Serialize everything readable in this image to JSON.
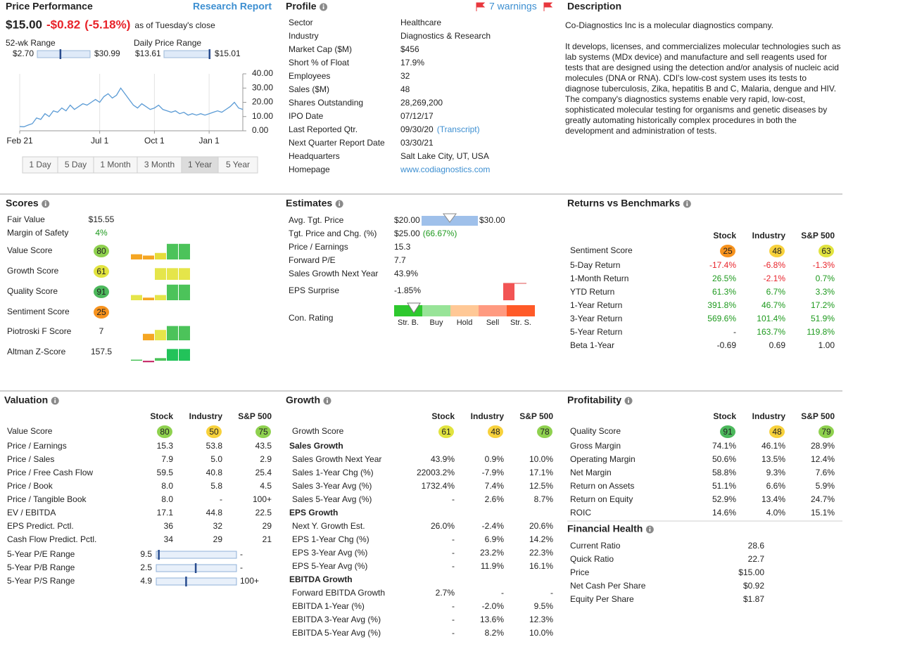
{
  "chart_data": {
    "type": "line",
    "color": "#5b9bd5",
    "values": [
      3,
      2.8,
      4,
      5,
      9,
      8,
      12,
      10,
      14,
      13,
      16,
      14,
      18,
      15,
      17,
      19,
      18,
      20,
      22,
      20,
      24,
      26,
      23,
      25,
      30,
      26,
      22,
      18,
      16,
      19,
      17,
      15,
      16,
      18,
      15,
      14,
      13,
      14,
      12,
      13,
      11,
      12,
      11,
      12,
      11,
      12,
      13,
      14,
      13,
      15,
      17,
      20,
      16,
      15
    ],
    "xlim": [
      0,
      53
    ],
    "xticks": [
      {
        "value": 0,
        "label": "Feb 21"
      },
      {
        "value": 19,
        "label": "Jul 1"
      },
      {
        "value": 32,
        "label": "Oct 1"
      },
      {
        "value": 45,
        "label": "Jan 1"
      }
    ],
    "ylim": [
      0,
      40
    ],
    "yticks": [
      {
        "value": 0,
        "label": "0.00"
      },
      {
        "value": 10,
        "label": "10.00"
      },
      {
        "value": 20,
        "label": "20.00"
      },
      {
        "value": 30,
        "label": "30.00"
      },
      {
        "value": 40,
        "label": "40.00"
      }
    ],
    "grid": true
  },
  "price_performance": {
    "title": "Price Performance",
    "link": "Research Report",
    "price": "$15.00",
    "change": "-$0.82",
    "change_pct": "(-5.18%)",
    "as_of": "as of Tuesday's close",
    "ranges": [
      {
        "label": "52-wk Range",
        "low": 2.7,
        "high": 30.99,
        "value": 15,
        "low_label": "$2.70",
        "high_label": "$30.99"
      },
      {
        "label": "Daily Price Range",
        "low": 13.61,
        "high": 15.01,
        "value": 15,
        "low_label": "$13.61",
        "high_label": "$15.01"
      }
    ],
    "periods": [
      "1 Day",
      "5 Day",
      "1 Month",
      "3 Month",
      "1 Year",
      "5 Year"
    ],
    "active_period": 4
  },
  "profile": {
    "title": "Profile",
    "warnings": "7 warnings",
    "rows": [
      {
        "label": "Sector",
        "value": "Healthcare"
      },
      {
        "label": "Industry",
        "value": "Diagnostics & Research"
      },
      {
        "label": "Market Cap ($M)",
        "value": "$456"
      },
      {
        "label": "Short % of Float",
        "value": "17.9%"
      },
      {
        "label": "Employees",
        "value": "32"
      },
      {
        "label": "Sales ($M)",
        "value": "48"
      },
      {
        "label": "Shares Outstanding",
        "value": "28,269,200"
      },
      {
        "label": "IPO Date",
        "value": "07/12/17"
      },
      {
        "label": "Last Reported Qtr.",
        "value": "09/30/20",
        "link": "(Transcript)"
      },
      {
        "label": "Next Quarter Report Date",
        "value": "03/30/21"
      },
      {
        "label": "Headquarters",
        "value": "Salt Lake City, UT, USA"
      },
      {
        "label": "Homepage",
        "link": "www.codiagnostics.com"
      }
    ]
  },
  "description": {
    "title": "Description",
    "paragraphs": [
      "Co-Diagnostics Inc is a molecular diagnostics company.",
      "It develops, licenses, and commercializes molecular technologies such as lab systems (MDx device) and manufacture and sell reagents used for tests that are designed using the detection and/or analysis of nucleic acid molecules (DNA or RNA). CDI's low-cost system uses its tests to diagnose tuberculosis, Zika, hepatitis B and C, Malaria, dengue and HIV. The company's diagnostics systems enable very rapid, low-cost, sophisticated molecular testing for organisms and genetic diseases by greatly automating historically complex procedures in both the development and administration of tests."
    ]
  },
  "scores": {
    "title": "Scores",
    "rows": [
      {
        "label": "Fair Value",
        "value": "$15.55"
      },
      {
        "label": "Margin of Safety",
        "value": "4%",
        "color": "#1e9a1e"
      },
      {
        "label": "Value Score",
        "score": 80,
        "bars": [
          [
            2,
            "#f5a623"
          ],
          [
            1.5,
            "#f5a623"
          ],
          [
            2.5,
            "#e5dc3a"
          ],
          [
            6,
            "#4cc35a"
          ],
          [
            6,
            "#4cc35a"
          ]
        ]
      },
      {
        "label": "Growth Score",
        "score": 61,
        "bars": [
          [
            0,
            "#e5e54a"
          ],
          [
            0,
            "#e5e54a"
          ],
          [
            4.5,
            "#e5e54a"
          ],
          [
            4.5,
            "#e5e54a"
          ],
          [
            4.5,
            "#e5e54a"
          ]
        ]
      },
      {
        "label": "Quality Score",
        "score": 91,
        "bars": [
          [
            2,
            "#e5e54a"
          ],
          [
            1,
            "#f5a623"
          ],
          [
            2,
            "#e5e54a"
          ],
          [
            6,
            "#4cc35a"
          ],
          [
            6,
            "#4cc35a"
          ]
        ]
      },
      {
        "label": "Sentiment Score",
        "score": 25
      },
      {
        "label": "Piotroski F Score",
        "value": "7",
        "bars": [
          [
            0,
            "#f5a623"
          ],
          [
            2.5,
            "#f5a623"
          ],
          [
            4,
            "#e5e54a"
          ],
          [
            5.5,
            "#4cc35a"
          ],
          [
            5.5,
            "#4cc35a"
          ]
        ]
      },
      {
        "label": "Altman Z-Score",
        "value": "157.5",
        "bars": [
          [
            0.4,
            "#4cc35a"
          ],
          [
            -0.6,
            "#c8326e"
          ],
          [
            1,
            "#4cc35a"
          ],
          [
            4.5,
            "#22c35a"
          ],
          [
            4.5,
            "#22c35a"
          ]
        ]
      }
    ]
  },
  "estimates": {
    "title": "Estimates",
    "rows": [
      {
        "label": "Avg. Tgt. Price",
        "range": {
          "low": 20,
          "high": 30,
          "value": 25,
          "low_label": "$20.00",
          "high_label": "$30.00"
        }
      },
      {
        "label": "Tgt. Price and Chg. (%)",
        "value": "$25.00",
        "extra": "(66.67%)"
      },
      {
        "label": "Price / Earnings",
        "value": "15.3"
      },
      {
        "label": "Forward P/E",
        "value": "7.7"
      },
      {
        "label": "Sales Growth Next Year",
        "value": "43.9%"
      },
      {
        "label": "EPS Surprise",
        "value": "-1.85%",
        "surprise": -1.85
      },
      {
        "label": "Con. Rating",
        "rating": 1.2,
        "scale": [
          "Str. B.",
          "Buy",
          "Hold",
          "Sell",
          "Str. S."
        ],
        "scale_colors": [
          "#2ec82e",
          "#98e498",
          "#ffc896",
          "#ff9a80",
          "#ff5a28"
        ]
      }
    ]
  },
  "returns": {
    "title": "Returns vs Benchmarks",
    "columns": [
      "Stock",
      "Industry",
      "S&P 500"
    ],
    "rows": [
      {
        "label": "Sentiment Score",
        "scores": [
          25,
          48,
          63
        ]
      },
      {
        "label": "5-Day Return",
        "cells": [
          "-17.4%",
          "-6.8%",
          "-1.3%"
        ],
        "signed": true
      },
      {
        "label": "1-Month Return",
        "cells": [
          "26.5%",
          "-2.1%",
          "0.7%"
        ],
        "signed": true
      },
      {
        "label": "YTD Return",
        "cells": [
          "61.3%",
          "6.7%",
          "3.3%"
        ],
        "signed": true
      },
      {
        "label": "1-Year Return",
        "cells": [
          "391.8%",
          "46.7%",
          "17.2%"
        ],
        "signed": true
      },
      {
        "label": "3-Year Return",
        "cells": [
          "569.6%",
          "101.4%",
          "51.9%"
        ],
        "signed": true
      },
      {
        "label": "5-Year Return",
        "cells": [
          "-",
          "163.7%",
          "119.8%"
        ],
        "signed": true
      },
      {
        "label": "Beta 1-Year",
        "cells": [
          "-0.69",
          "0.69",
          "1.00"
        ]
      }
    ]
  },
  "valuation": {
    "title": "Valuation",
    "columns": [
      "Stock",
      "Industry",
      "S&P 500"
    ],
    "rows": [
      {
        "label": "Value Score",
        "scores": [
          80,
          50,
          75
        ]
      },
      {
        "label": "Price / Earnings",
        "cells": [
          "15.3",
          "53.8",
          "43.5"
        ]
      },
      {
        "label": "Price / Sales",
        "cells": [
          "7.9",
          "5.0",
          "2.9"
        ]
      },
      {
        "label": "Price / Free Cash Flow",
        "cells": [
          "59.5",
          "40.8",
          "25.4"
        ]
      },
      {
        "label": "Price / Book",
        "cells": [
          "8.0",
          "5.8",
          "4.5"
        ]
      },
      {
        "label": "Price / Tangible Book",
        "cells": [
          "8.0",
          "-",
          "100+"
        ]
      },
      {
        "label": "EV / EBITDA",
        "cells": [
          "17.1",
          "44.8",
          "22.5"
        ]
      },
      {
        "label": "EPS Predict. Pctl.",
        "cells": [
          "36",
          "32",
          "29"
        ]
      },
      {
        "label": "Cash Flow Predict. Pctl.",
        "cells": [
          "34",
          "29",
          "21"
        ]
      }
    ],
    "ranges": [
      {
        "label": "5-Year P/E Range",
        "low": "9.5",
        "high": "-",
        "marker": 3
      },
      {
        "label": "5-Year P/B Range",
        "low": "2.5",
        "high": "-",
        "marker": 49
      },
      {
        "label": "5-Year P/S Range",
        "low": "4.9",
        "high": "100+",
        "marker": 37
      }
    ]
  },
  "growth": {
    "title": "Growth",
    "columns": [
      "Stock",
      "Industry",
      "S&P 500"
    ],
    "rows": [
      {
        "label": "Growth Score",
        "scores": [
          61,
          48,
          78
        ]
      },
      {
        "heading": "Sales Growth"
      },
      {
        "label": "Sales Growth Next Year",
        "cells": [
          "43.9%",
          "0.9%",
          "10.0%"
        ]
      },
      {
        "label": "Sales 1-Year Chg (%)",
        "cells": [
          "22003.2%",
          "-7.9%",
          "17.1%"
        ]
      },
      {
        "label": "Sales 3-Year Avg (%)",
        "cells": [
          "1732.4%",
          "7.4%",
          "12.5%"
        ]
      },
      {
        "label": "Sales 5-Year Avg (%)",
        "cells": [
          "-",
          "2.6%",
          "8.7%"
        ]
      },
      {
        "heading": "EPS Growth"
      },
      {
        "label": "Next Y. Growth Est.",
        "cells": [
          "26.0%",
          "-2.4%",
          "20.6%"
        ]
      },
      {
        "label": "EPS 1-Year Chg (%)",
        "cells": [
          "-",
          "6.9%",
          "14.2%"
        ]
      },
      {
        "label": "EPS 3-Year Avg (%)",
        "cells": [
          "-",
          "23.2%",
          "22.3%"
        ]
      },
      {
        "label": "EPS 5-Year Avg (%)",
        "cells": [
          "-",
          "11.9%",
          "16.1%"
        ]
      },
      {
        "heading": "EBITDA Growth"
      },
      {
        "label": "Forward EBITDA Growth",
        "cells": [
          "2.7%",
          "-",
          "-"
        ]
      },
      {
        "label": "EBITDA 1-Year (%)",
        "cells": [
          "-",
          "-2.0%",
          "9.5%"
        ]
      },
      {
        "label": "EBITDA 3-Year Avg (%)",
        "cells": [
          "-",
          "13.6%",
          "12.3%"
        ]
      },
      {
        "label": "EBITDA 5-Year Avg (%)",
        "cells": [
          "-",
          "8.2%",
          "10.0%"
        ]
      }
    ]
  },
  "profitability": {
    "title": "Profitability",
    "columns": [
      "Stock",
      "Industry",
      "S&P 500"
    ],
    "rows": [
      {
        "label": "Quality Score",
        "scores": [
          91,
          48,
          79
        ]
      },
      {
        "label": "Gross Margin",
        "cells": [
          "74.1%",
          "46.1%",
          "28.9%"
        ]
      },
      {
        "label": "Operating Margin",
        "cells": [
          "50.6%",
          "13.5%",
          "12.4%"
        ]
      },
      {
        "label": "Net Margin",
        "cells": [
          "58.8%",
          "9.3%",
          "7.6%"
        ]
      },
      {
        "label": "Return on Assets",
        "cells": [
          "51.1%",
          "6.6%",
          "5.9%"
        ]
      },
      {
        "label": "Return on Equity",
        "cells": [
          "52.9%",
          "13.4%",
          "24.7%"
        ]
      },
      {
        "label": "ROIC",
        "cells": [
          "14.6%",
          "4.0%",
          "15.1%"
        ]
      }
    ]
  },
  "financial_health": {
    "title": "Financial Health",
    "rows": [
      {
        "label": "Current Ratio",
        "value": "28.6"
      },
      {
        "label": "Quick Ratio",
        "value": "22.7"
      },
      {
        "label": "Price",
        "value": "$15.00"
      },
      {
        "label": "Net Cash Per Share",
        "value": "$0.92"
      },
      {
        "label": "Equity Per Share",
        "value": "$1.87"
      }
    ]
  }
}
